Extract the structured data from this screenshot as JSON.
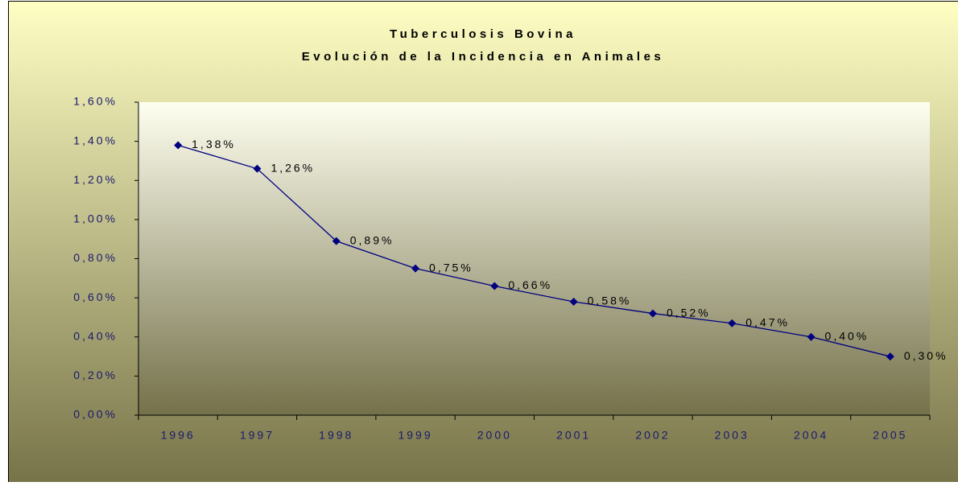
{
  "chart_data": {
    "type": "line",
    "title": "Tuberculosis Bovina",
    "subtitle": "Evolución de la Incidencia en Animales",
    "categories": [
      "1996",
      "1997",
      "1998",
      "1999",
      "2000",
      "2001",
      "2002",
      "2003",
      "2004",
      "2005"
    ],
    "series": [
      {
        "name": "Incidencia",
        "color": "#000080",
        "values": [
          1.38,
          1.26,
          0.89,
          0.75,
          0.66,
          0.58,
          0.52,
          0.47,
          0.4,
          0.3
        ],
        "value_labels": [
          "1,38%",
          "1,26%",
          "0,89%",
          "0,75%",
          "0,66%",
          "0,58%",
          "0,52%",
          "0,47%",
          "0,40%",
          "0,30%"
        ]
      }
    ],
    "ylim": [
      0,
      1.6
    ],
    "yticks": [
      {
        "value": 0,
        "label": "0,00%"
      },
      {
        "value": 0.2,
        "label": "0,20%"
      },
      {
        "value": 0.4,
        "label": "0,40%"
      },
      {
        "value": 0.6,
        "label": "0,60%"
      },
      {
        "value": 0.8,
        "label": "0,80%"
      },
      {
        "value": 1.0,
        "label": "1,00%"
      },
      {
        "value": 1.2,
        "label": "1,20%"
      },
      {
        "value": 1.4,
        "label": "1,40%"
      },
      {
        "value": 1.6,
        "label": "1,60%"
      }
    ],
    "grid": false,
    "legend": false
  }
}
